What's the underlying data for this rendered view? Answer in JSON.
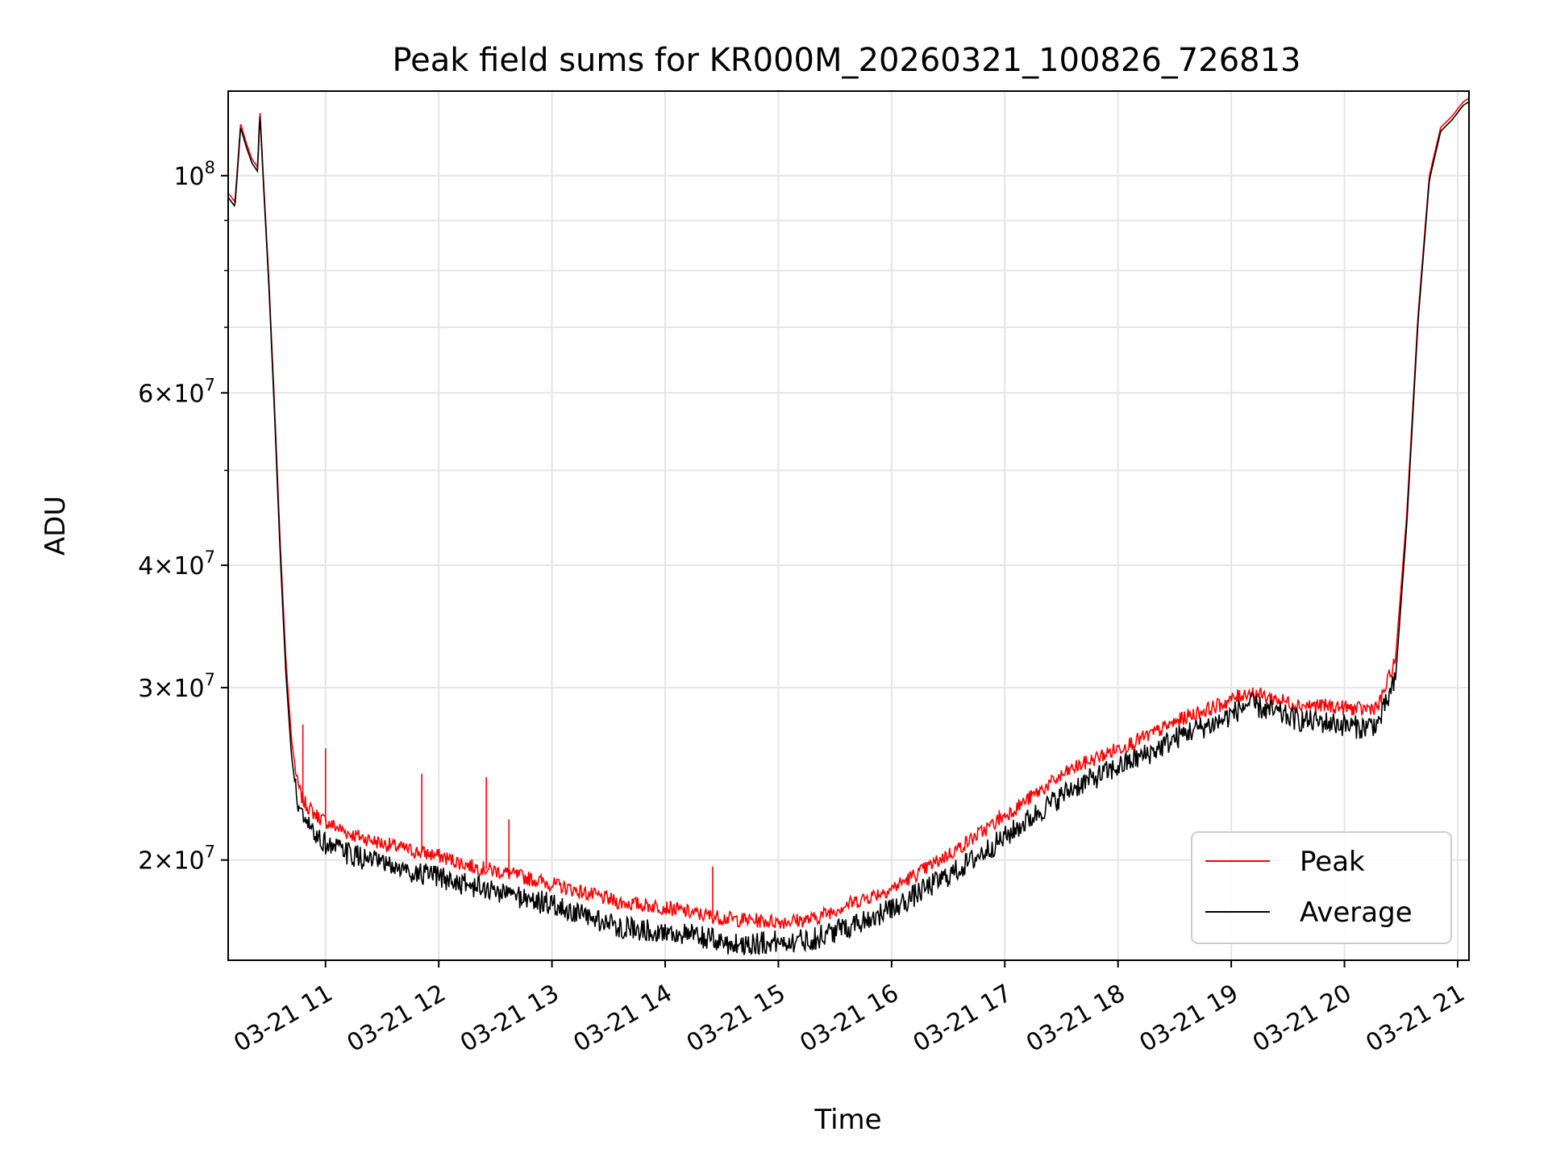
{
  "chart_data": {
    "type": "line",
    "title": "Peak field sums for KR000M_20260321_100826_726813",
    "xlabel": "Time",
    "ylabel": "ADU",
    "yscale": "log",
    "grid": true,
    "legend_position": "lower-right",
    "x_unit": "hours (2026-03-21)",
    "xlim": [
      10.14,
      21.1
    ],
    "ylim": [
      15800000,
      122000000
    ],
    "x_tick_values": [
      11,
      12,
      13,
      14,
      15,
      16,
      17,
      18,
      19,
      20,
      21
    ],
    "x_tick_labels": [
      "03-21 11",
      "03-21 12",
      "03-21 13",
      "03-21 14",
      "03-21 15",
      "03-21 16",
      "03-21 17",
      "03-21 18",
      "03-21 19",
      "03-21 20",
      "03-21 21"
    ],
    "y_major_ticks": [
      {
        "value": 20000000,
        "mant": "2",
        "exp": "7"
      },
      {
        "value": 30000000,
        "mant": "3",
        "exp": "7"
      },
      {
        "value": 40000000,
        "mant": "4",
        "exp": "7"
      },
      {
        "value": 60000000,
        "mant": "6",
        "exp": "7"
      },
      {
        "value": 100000000,
        "mant": "",
        "exp": "8"
      }
    ],
    "y_minor_ticks": [
      50000000,
      70000000,
      80000000,
      90000000
    ],
    "series": [
      {
        "name": "Peak",
        "color": "#ff0000",
        "x": [
          10.14,
          10.2,
          10.25,
          10.3,
          10.35,
          10.4,
          10.42,
          10.45,
          10.5,
          10.55,
          10.6,
          10.65,
          10.7,
          10.75,
          10.8,
          10.9,
          11.0,
          11.2,
          11.5,
          11.8,
          12.0,
          12.3,
          12.6,
          13.0,
          13.3,
          13.6,
          14.0,
          14.3,
          14.6,
          15.0,
          15.3,
          15.6,
          16.0,
          16.3,
          16.6,
          17.0,
          17.3,
          17.6,
          18.0,
          18.3,
          18.6,
          18.9,
          19.15,
          19.3,
          19.6,
          19.9,
          20.15,
          20.3,
          20.45,
          20.55,
          20.65,
          20.75,
          20.85,
          20.95,
          21.05,
          21.1
        ],
        "y": [
          96000000,
          94000000,
          113000000,
          108000000,
          104000000,
          102000000,
          117000000,
          100000000,
          78000000,
          58000000,
          42000000,
          32000000,
          26500000,
          24000000,
          23000000,
          22300000,
          21900000,
          21300000,
          20800000,
          20400000,
          20200000,
          19700000,
          19400000,
          18900000,
          18500000,
          18100000,
          17900000,
          17600000,
          17400000,
          17300000,
          17400000,
          18000000,
          18700000,
          19600000,
          20600000,
          22200000,
          23500000,
          24800000,
          26000000,
          26900000,
          28000000,
          28800000,
          29700000,
          29400000,
          28800000,
          28700000,
          28500000,
          28700000,
          32000000,
          45000000,
          72000000,
          100000000,
          112000000,
          115000000,
          119000000,
          120000000
        ]
      },
      {
        "name": "Average",
        "color": "#000000",
        "x": [
          10.14,
          10.2,
          10.25,
          10.3,
          10.35,
          10.4,
          10.42,
          10.45,
          10.5,
          10.55,
          10.6,
          10.65,
          10.7,
          10.75,
          10.8,
          10.9,
          11.0,
          11.2,
          11.5,
          11.8,
          12.0,
          12.3,
          12.6,
          13.0,
          13.3,
          13.6,
          14.0,
          14.3,
          14.6,
          15.0,
          15.3,
          15.6,
          16.0,
          16.3,
          16.6,
          17.0,
          17.3,
          17.6,
          18.0,
          18.3,
          18.6,
          18.9,
          19.15,
          19.3,
          19.6,
          19.9,
          20.15,
          20.3,
          20.45,
          20.55,
          20.65,
          20.75,
          20.85,
          20.95,
          21.05,
          21.1
        ],
        "y": [
          95000000,
          93000000,
          112000000,
          107000000,
          103000000,
          101000000,
          116000000,
          99000000,
          77000000,
          57000000,
          41000000,
          31000000,
          25500000,
          23000000,
          22000000,
          21300000,
          20800000,
          20300000,
          19800000,
          19400000,
          19200000,
          18800000,
          18500000,
          18000000,
          17500000,
          17100000,
          16900000,
          16700000,
          16400000,
          16500000,
          16600000,
          17100000,
          17800000,
          18700000,
          19600000,
          21100000,
          22400000,
          23700000,
          24900000,
          25800000,
          27000000,
          27700000,
          28900000,
          28500000,
          27800000,
          27600000,
          27300000,
          27600000,
          30500000,
          44000000,
          71000000,
          99000000,
          111000000,
          114000000,
          118000000,
          119000000
        ]
      }
    ]
  }
}
